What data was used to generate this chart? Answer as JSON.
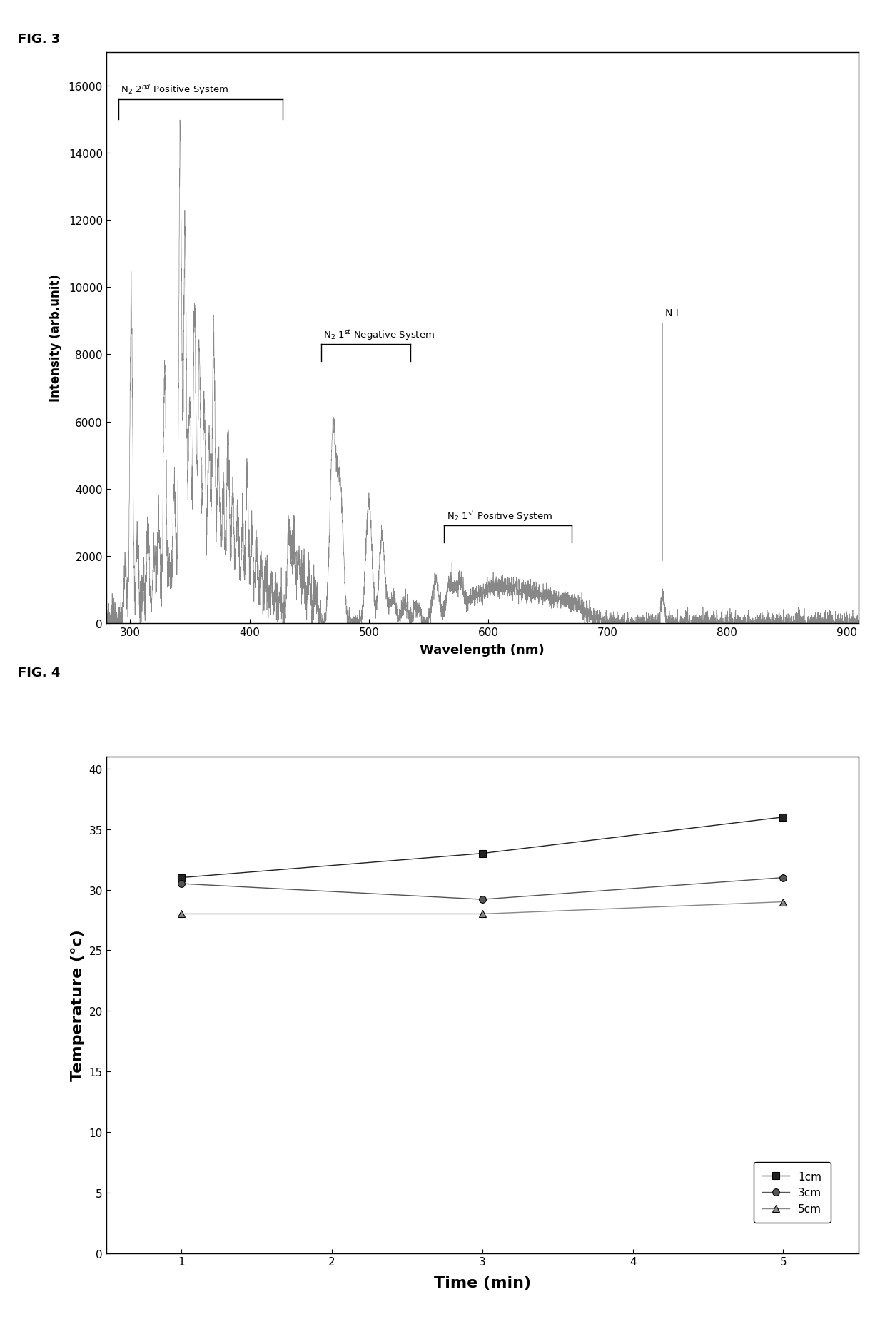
{
  "fig3_title": "FIG. 3",
  "fig4_title": "FIG. 4",
  "spec_xlabel": "Wavelength (nm)",
  "spec_ylabel": "Intensity (arb.unit)",
  "spec_xlim": [
    280,
    910
  ],
  "spec_ylim": [
    0,
    17000
  ],
  "spec_yticks": [
    0,
    2000,
    4000,
    6000,
    8000,
    10000,
    12000,
    14000,
    16000
  ],
  "spec_xticks": [
    300,
    400,
    500,
    600,
    700,
    800,
    900
  ],
  "temp_xlabel": "Time (min)",
  "temp_ylabel": "Temperature (°c)",
  "temp_xlim": [
    0.5,
    5.5
  ],
  "temp_ylim": [
    0,
    41
  ],
  "temp_xticks": [
    1,
    2,
    3,
    4,
    5
  ],
  "temp_yticks": [
    0,
    5,
    10,
    15,
    20,
    25,
    30,
    35,
    40
  ],
  "series": [
    {
      "label": "1cm",
      "x": [
        1,
        3,
        5
      ],
      "y": [
        31.0,
        33.0,
        36.0
      ],
      "marker": "s",
      "color": "#222222",
      "linestyle": "-"
    },
    {
      "label": "3cm",
      "x": [
        1,
        3,
        5
      ],
      "y": [
        30.5,
        29.2,
        31.0
      ],
      "marker": "o",
      "color": "#555555",
      "linestyle": "-"
    },
    {
      "label": "5cm",
      "x": [
        1,
        3,
        5
      ],
      "y": [
        28.0,
        28.0,
        29.0
      ],
      "marker": "^",
      "color": "#888888",
      "linestyle": "-"
    }
  ],
  "background_color": "#ffffff",
  "spine_color": "#000000"
}
